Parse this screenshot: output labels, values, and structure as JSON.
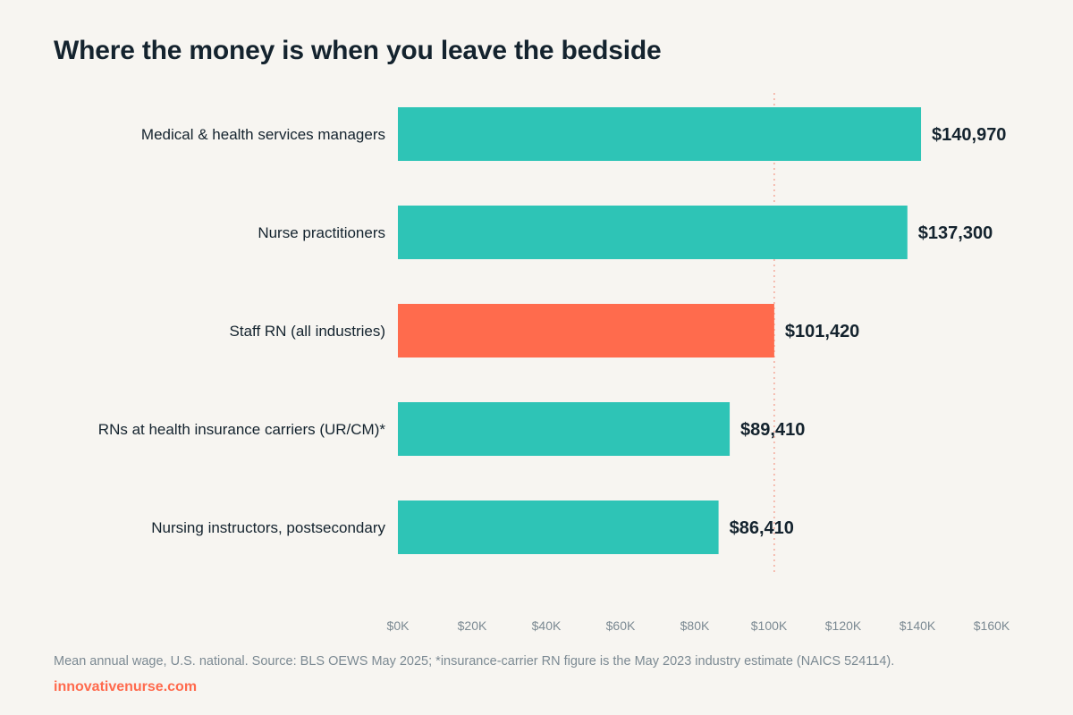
{
  "chart_data": {
    "type": "bar",
    "orientation": "horizontal",
    "title": "Where the money is when you leave the bedside",
    "categories": [
      "Medical & health services managers",
      "Nurse practitioners",
      "Staff RN (all industries)",
      "RNs at health insurance carriers (UR/CM)*",
      "Nursing instructors, postsecondary"
    ],
    "values": [
      140970,
      137300,
      101420,
      89410,
      86410
    ],
    "value_labels": [
      "$140,970",
      "$137,300",
      "$101,420",
      "$89,410",
      "$86,410"
    ],
    "highlight_category": "Staff RN (all industries)",
    "reference_line": {
      "value": 101420,
      "style": "dotted"
    },
    "xlim": [
      0,
      160000
    ],
    "x_ticks": [
      0,
      20000,
      40000,
      60000,
      80000,
      100000,
      120000,
      140000,
      160000
    ],
    "x_tick_labels": [
      "$0K",
      "$20K",
      "$40K",
      "$60K",
      "$80K",
      "$100K",
      "$120K",
      "$140K",
      "$160K"
    ],
    "grid": false,
    "legend": "none",
    "colors": {
      "bar": "#2ec4b6",
      "highlight": "#ff6b4d",
      "reference_line": "#f4aea0"
    }
  },
  "footer": {
    "note": "Mean annual wage, U.S. national. Source: BLS OEWS May 2025; *insurance-carrier RN figure is the May 2023 industry estimate (NAICS 524114).",
    "brand": "innovativenurse.com"
  }
}
